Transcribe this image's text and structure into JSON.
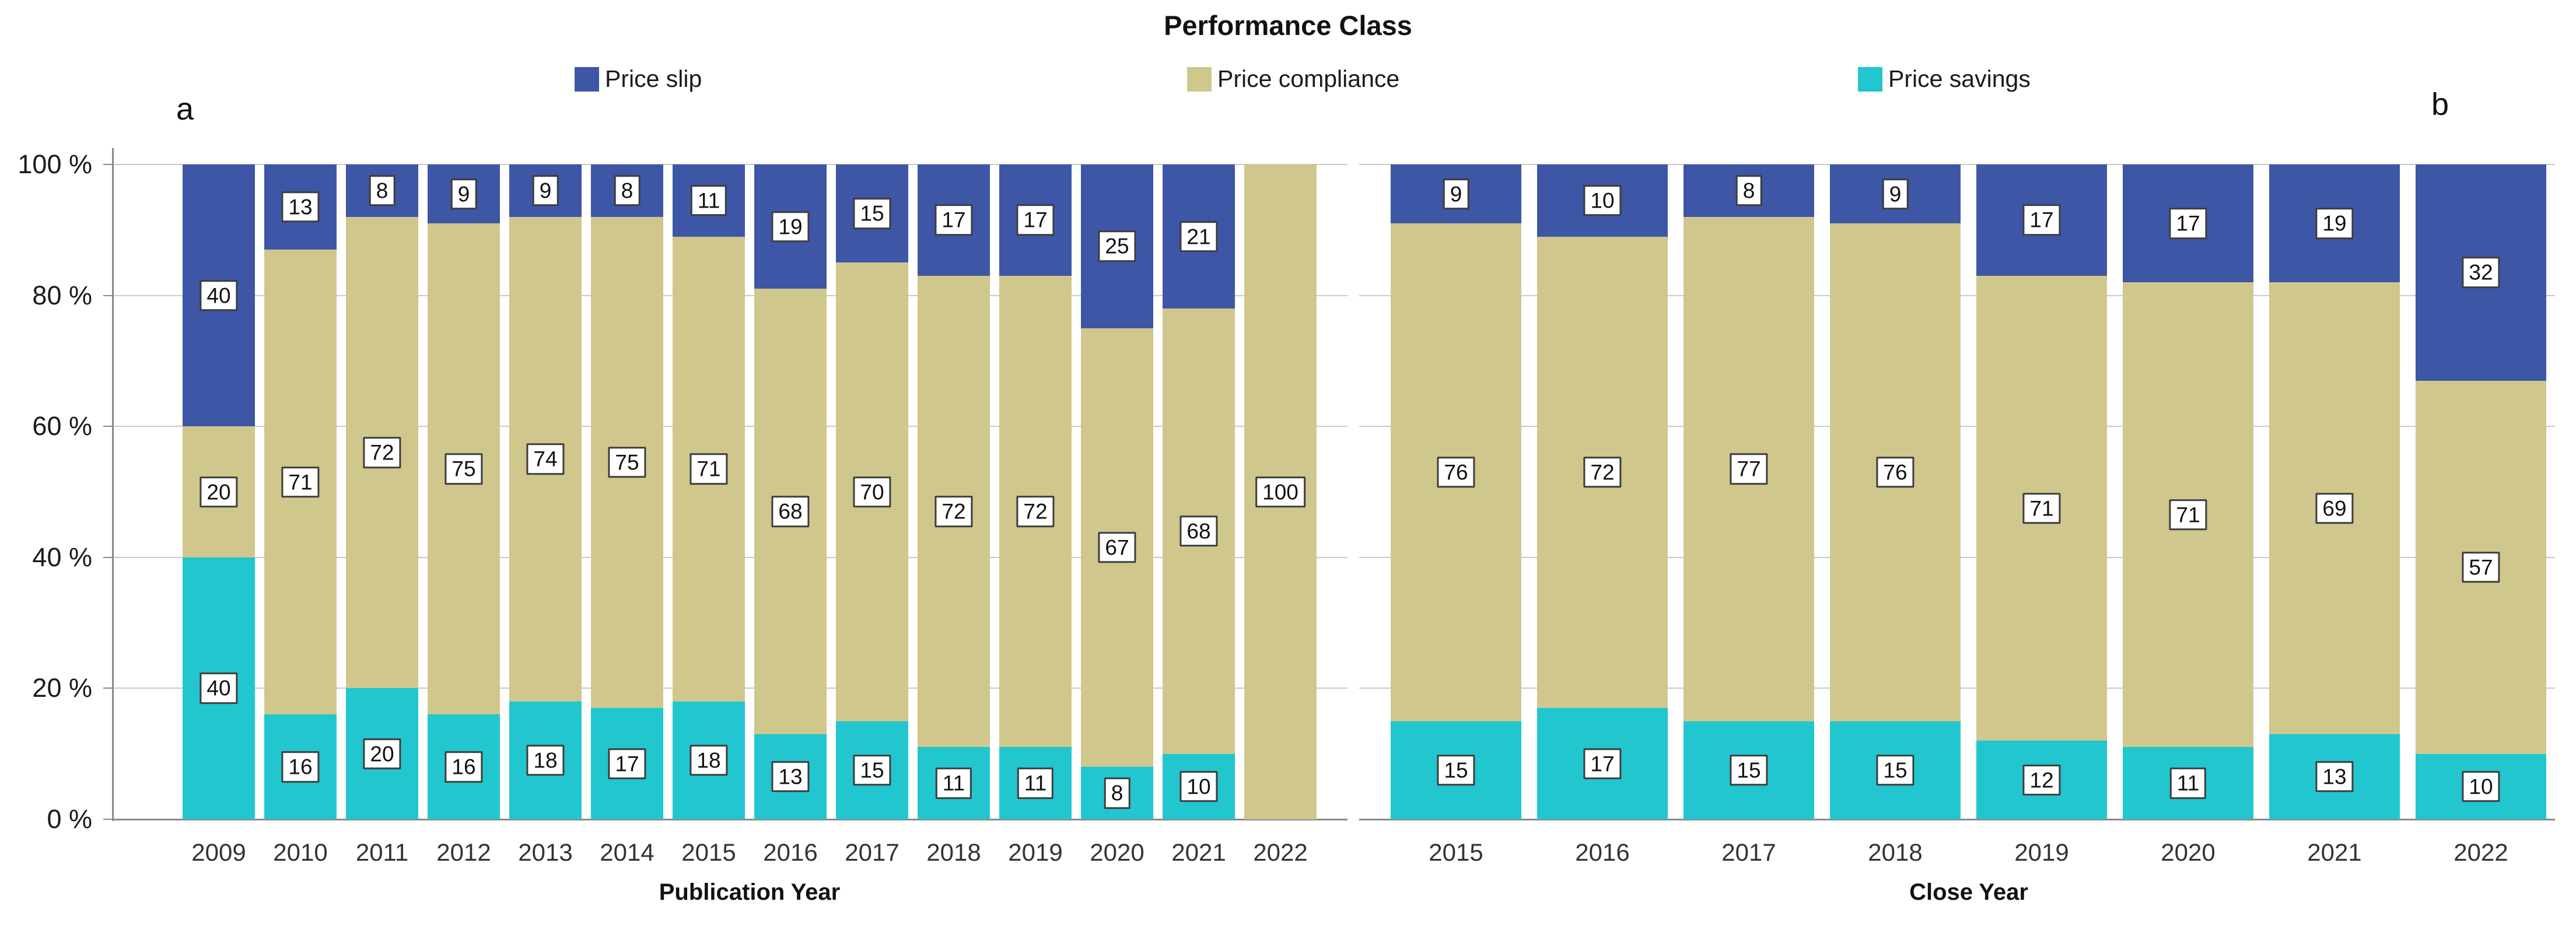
{
  "title": "Performance Class",
  "panel_a_label": "a",
  "panel_b_label": "b",
  "legend": [
    {
      "label": "Price slip",
      "color": "#3E56A6"
    },
    {
      "label": "Price compliance",
      "color": "#D0C78D"
    },
    {
      "label": "Price savings",
      "color": "#22C6CF"
    }
  ],
  "y_axis": {
    "tick_labels": [
      "100 %",
      "80 %",
      "60 %",
      "40 %",
      "20 %",
      "0 %"
    ]
  },
  "chart_data": [
    {
      "type": "bar",
      "stacked": true,
      "panel": "a",
      "title": "Performance Class",
      "xlabel": "Publication Year",
      "ylabel": "",
      "ylim": [
        0,
        100
      ],
      "grid": true,
      "legend_position": "top",
      "categories": [
        "2009",
        "2010",
        "2011",
        "2012",
        "2013",
        "2014",
        "2015",
        "2016",
        "2017",
        "2018",
        "2019",
        "2020",
        "2021",
        "2022"
      ],
      "series": [
        {
          "name": "Price slip",
          "values": [
            40,
            13,
            8,
            9,
            9,
            8,
            11,
            19,
            15,
            17,
            17,
            25,
            21,
            null
          ]
        },
        {
          "name": "Price compliance",
          "values": [
            20,
            71,
            72,
            75,
            74,
            75,
            71,
            68,
            70,
            72,
            72,
            67,
            68,
            100
          ]
        },
        {
          "name": "Price savings",
          "values": [
            40,
            16,
            20,
            16,
            18,
            17,
            18,
            13,
            15,
            11,
            11,
            8,
            10,
            null
          ]
        }
      ]
    },
    {
      "type": "bar",
      "stacked": true,
      "panel": "b",
      "title": "Performance Class",
      "xlabel": "Close Year",
      "ylabel": "",
      "ylim": [
        0,
        100
      ],
      "grid": true,
      "legend_position": "top",
      "categories": [
        "2015",
        "2016",
        "2017",
        "2018",
        "2019",
        "2020",
        "2021",
        "2022"
      ],
      "series": [
        {
          "name": "Price slip",
          "values": [
            9,
            10,
            8,
            9,
            17,
            17,
            19,
            32
          ]
        },
        {
          "name": "Price compliance",
          "values": [
            76,
            72,
            77,
            76,
            71,
            71,
            69,
            57
          ]
        },
        {
          "name": "Price savings",
          "values": [
            15,
            17,
            15,
            15,
            12,
            11,
            13,
            10
          ]
        }
      ]
    }
  ]
}
